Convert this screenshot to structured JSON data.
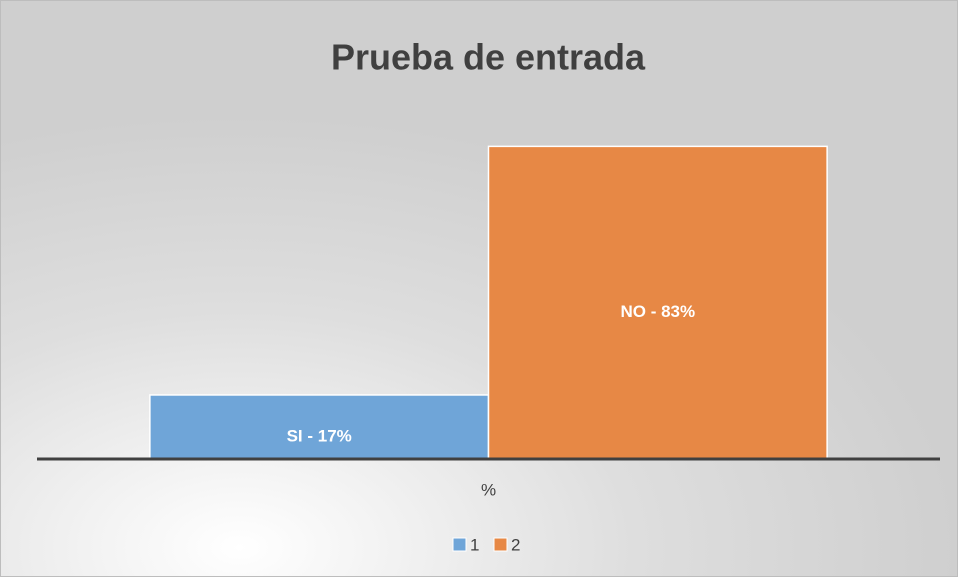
{
  "chart_data": {
    "type": "bar",
    "title": "Prueba de entrada",
    "categories": [
      "%"
    ],
    "series": [
      {
        "name": "1",
        "color": "#6fa5d8",
        "values": [
          17
        ],
        "value_labels": [
          "SI - 17%"
        ]
      },
      {
        "name": "2",
        "color": "#e78845",
        "values": [
          83
        ],
        "value_labels": [
          "NO - 83%"
        ]
      }
    ],
    "ylim": [
      0,
      90
    ],
    "legend": "bottom"
  }
}
